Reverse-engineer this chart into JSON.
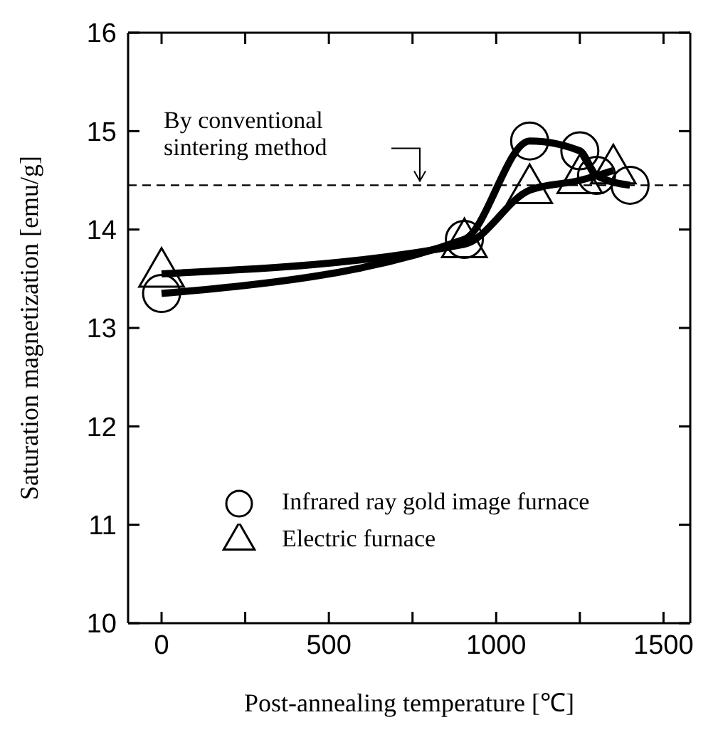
{
  "chart_data": {
    "type": "line",
    "xlabel": "Post-annealing temperature [℃]",
    "ylabel": "Saturation magnetization [emu/g]",
    "xlim": [
      -100,
      1580
    ],
    "xticks": [
      0,
      {
        "value": 250,
        "label": null
      },
      500,
      {
        "value": 750,
        "label": null
      },
      1000,
      {
        "value": 1250,
        "label": null
      },
      1500
    ],
    "ylim": [
      10,
      16
    ],
    "yticks": [
      10,
      11,
      12,
      13,
      14,
      15,
      16
    ],
    "grid": false,
    "legend": "bottom left",
    "line_style": "solid",
    "series": [
      {
        "name": "Infrared ray gold image furnace",
        "color": "#000000",
        "marker": "circle",
        "x": [
          0,
          905,
          1100,
          1250,
          1300,
          1400
        ],
        "values": [
          13.35,
          13.9,
          14.9,
          14.8,
          14.55,
          14.45
        ]
      },
      {
        "name": "Electric furnace",
        "color": "#000000",
        "marker": "triangle",
        "x": [
          0,
          905,
          1100,
          1250,
          1350
        ],
        "values": [
          13.55,
          13.85,
          14.4,
          14.5,
          14.6
        ]
      }
    ],
    "ref_lines": [
      {
        "axis": "y",
        "value": 14.45,
        "label": "By conventional\nsintering method",
        "line_style": "dashed",
        "color": "#000000"
      }
    ]
  }
}
